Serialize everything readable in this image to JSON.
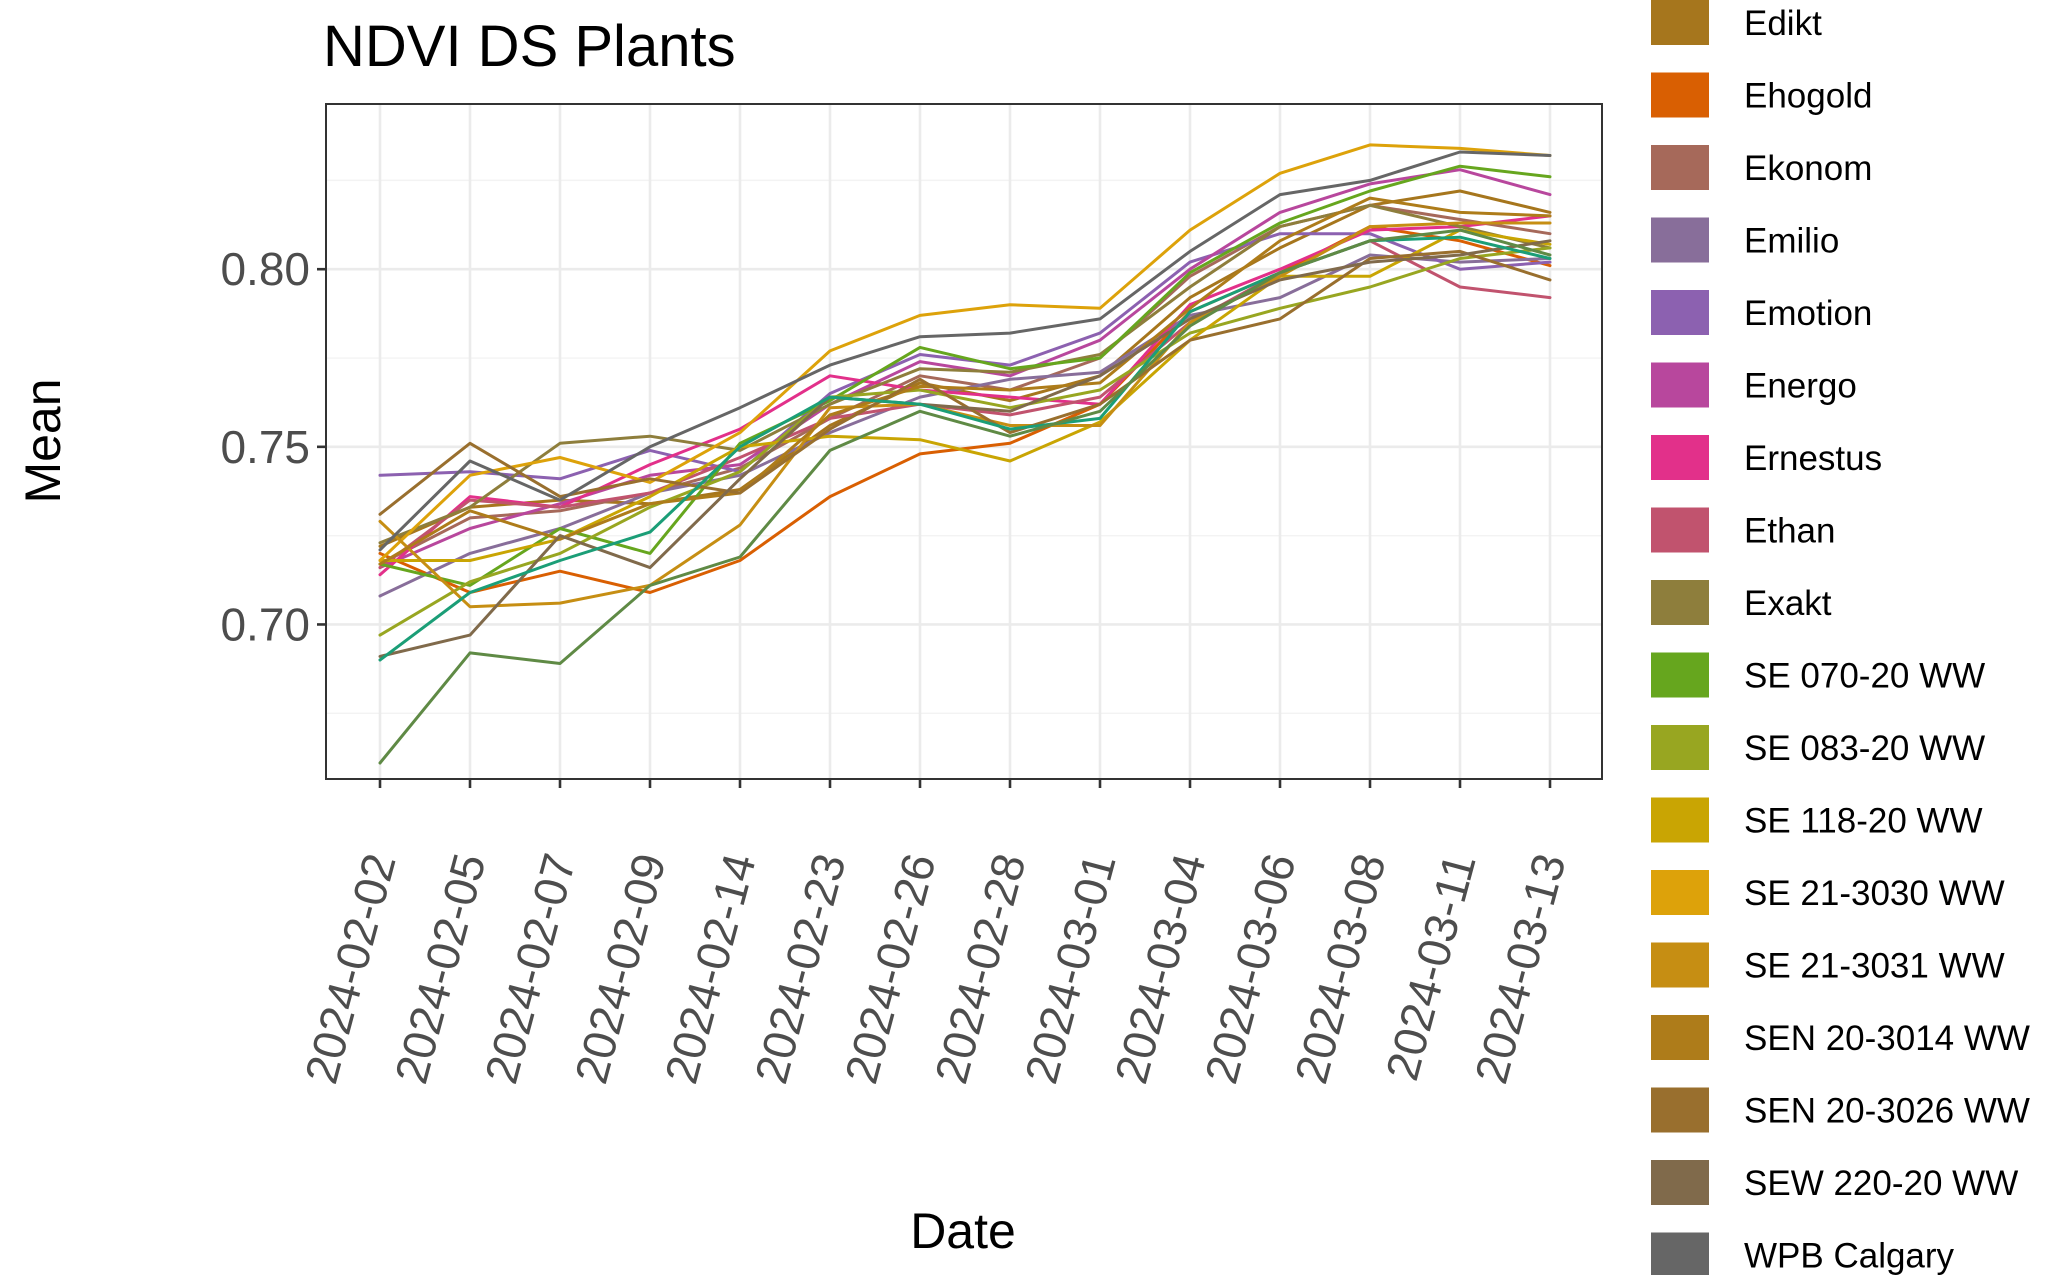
{
  "chart_data": {
    "type": "line",
    "title": "NDVI DS Plants",
    "xlabel": "Date",
    "ylabel": "Mean",
    "x": [
      "2024-02-02",
      "2024-02-05",
      "2024-02-07",
      "2024-02-09",
      "2024-02-14",
      "2024-02-23",
      "2024-02-26",
      "2024-02-28",
      "2024-03-01",
      "2024-03-04",
      "2024-03-06",
      "2024-03-08",
      "2024-03-11",
      "2024-03-13"
    ],
    "y_ticks": [
      "0.70",
      "0.75",
      "0.80"
    ],
    "ylim": [
      0.6565,
      0.8465
    ],
    "grid": true,
    "legend_position": "right",
    "series": [
      {
        "name": "Edikt",
        "color": "#A6761D",
        "values": [
          0.722,
          0.733,
          0.735,
          0.734,
          0.738,
          0.756,
          0.768,
          0.763,
          0.77,
          0.792,
          0.806,
          0.818,
          0.822,
          0.816
        ]
      },
      {
        "name": "Ehogold",
        "color": "#D95F02",
        "values": [
          0.72,
          0.709,
          0.715,
          0.709,
          0.718,
          0.736,
          0.748,
          0.751,
          0.762,
          0.788,
          0.799,
          0.812,
          0.808,
          0.801
        ]
      },
      {
        "name": "Ekonom",
        "color": "#A6695A",
        "values": [
          0.717,
          0.73,
          0.732,
          0.737,
          0.744,
          0.758,
          0.77,
          0.766,
          0.775,
          0.798,
          0.812,
          0.818,
          0.814,
          0.81
        ]
      },
      {
        "name": "Emilio",
        "color": "#886E9A",
        "values": [
          0.708,
          0.72,
          0.727,
          0.737,
          0.742,
          0.754,
          0.764,
          0.769,
          0.771,
          0.787,
          0.792,
          0.804,
          0.802,
          0.803
        ]
      },
      {
        "name": "Emotion",
        "color": "#8C61B0",
        "values": [
          0.742,
          0.743,
          0.741,
          0.749,
          0.743,
          0.765,
          0.776,
          0.773,
          0.782,
          0.802,
          0.81,
          0.81,
          0.8,
          0.802
        ]
      },
      {
        "name": "Energo",
        "color": "#B8479D",
        "values": [
          0.716,
          0.727,
          0.734,
          0.742,
          0.745,
          0.762,
          0.774,
          0.77,
          0.78,
          0.8,
          0.816,
          0.824,
          0.828,
          0.821
        ]
      },
      {
        "name": "Ernestus",
        "color": "#E2308A",
        "values": [
          0.714,
          0.736,
          0.733,
          0.745,
          0.755,
          0.77,
          0.766,
          0.764,
          0.762,
          0.79,
          0.8,
          0.811,
          0.812,
          0.815
        ]
      },
      {
        "name": "Ethan",
        "color": "#C1536E",
        "values": [
          0.716,
          0.735,
          0.733,
          0.737,
          0.747,
          0.758,
          0.762,
          0.759,
          0.764,
          0.785,
          0.799,
          0.808,
          0.795,
          0.792
        ]
      },
      {
        "name": "Exakt",
        "color": "#8E7E3C",
        "values": [
          0.723,
          0.733,
          0.751,
          0.753,
          0.749,
          0.762,
          0.772,
          0.771,
          0.776,
          0.795,
          0.812,
          0.818,
          0.812,
          0.806
        ]
      },
      {
        "name": "SE 070-20 WW",
        "color": "#66A61E",
        "values": [
          0.717,
          0.711,
          0.727,
          0.72,
          0.751,
          0.763,
          0.778,
          0.772,
          0.775,
          0.799,
          0.813,
          0.822,
          0.829,
          0.826
        ]
      },
      {
        "name": "SE 083-20 WW",
        "color": "#98A621",
        "values": [
          0.697,
          0.712,
          0.72,
          0.733,
          0.743,
          0.764,
          0.766,
          0.761,
          0.766,
          0.782,
          0.789,
          0.795,
          0.803,
          0.806
        ]
      },
      {
        "name": "SE 118-20 WW",
        "color": "#C9A503",
        "values": [
          0.718,
          0.718,
          0.724,
          0.736,
          0.75,
          0.753,
          0.752,
          0.746,
          0.757,
          0.78,
          0.798,
          0.798,
          0.811,
          0.807
        ]
      },
      {
        "name": "SE 21-3030 WW",
        "color": "#DDA20A",
        "values": [
          0.718,
          0.742,
          0.747,
          0.74,
          0.754,
          0.777,
          0.787,
          0.79,
          0.789,
          0.811,
          0.827,
          0.835,
          0.834,
          0.832
        ]
      },
      {
        "name": "SE 21-3031 WW",
        "color": "#C68E13",
        "values": [
          0.729,
          0.705,
          0.706,
          0.711,
          0.728,
          0.761,
          0.762,
          0.756,
          0.756,
          0.785,
          0.798,
          0.812,
          0.813,
          0.813
        ]
      },
      {
        "name": "SEN 20-3014 WW",
        "color": "#AE7C1A",
        "values": [
          0.717,
          0.732,
          0.724,
          0.734,
          0.737,
          0.759,
          0.767,
          0.766,
          0.768,
          0.789,
          0.808,
          0.82,
          0.816,
          0.815
        ]
      },
      {
        "name": "SEN 20-3026 WW",
        "color": "#996F2E",
        "values": [
          0.731,
          0.751,
          0.736,
          0.741,
          0.737,
          0.755,
          0.769,
          0.754,
          0.762,
          0.78,
          0.786,
          0.803,
          0.805,
          0.797
        ]
      },
      {
        "name": "SEW 220-20 WW",
        "color": "#806A4B",
        "values": [
          0.691,
          0.697,
          0.725,
          0.716,
          0.741,
          0.764,
          0.762,
          0.76,
          0.77,
          0.786,
          0.797,
          0.802,
          0.804,
          0.808
        ]
      },
      {
        "name": "WPB Calgary",
        "color": "#666666",
        "values": [
          0.721,
          0.746,
          0.735,
          0.75,
          0.761,
          0.773,
          0.781,
          0.782,
          0.786,
          0.805,
          0.821,
          0.825,
          0.833,
          0.832
        ]
      },
      {
        "name": "",
        "color": "#1B9E77",
        "values": [
          0.69,
          0.709,
          0.718,
          0.726,
          0.75,
          0.764,
          0.762,
          0.755,
          0.758,
          0.788,
          0.799,
          0.808,
          0.809,
          0.803
        ]
      },
      {
        "name": "",
        "color": "#5F8A45",
        "values": [
          0.661,
          0.692,
          0.689,
          0.711,
          0.719,
          0.749,
          0.76,
          0.753,
          0.76,
          0.784,
          0.799,
          0.808,
          0.811,
          0.804
        ]
      }
    ]
  }
}
